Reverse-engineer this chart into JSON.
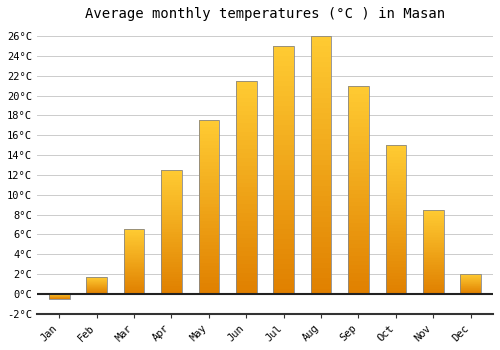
{
  "title": "Average monthly temperatures (°C ) in Masan",
  "months": [
    "Jan",
    "Feb",
    "Mar",
    "Apr",
    "May",
    "Jun",
    "Jul",
    "Aug",
    "Sep",
    "Oct",
    "Nov",
    "Dec"
  ],
  "values": [
    -0.5,
    1.7,
    6.5,
    12.5,
    17.5,
    21.5,
    25.0,
    26.0,
    21.0,
    15.0,
    8.5,
    2.0
  ],
  "ylim": [
    -2,
    27
  ],
  "yticks": [
    -2,
    0,
    2,
    4,
    6,
    8,
    10,
    12,
    14,
    16,
    18,
    20,
    22,
    24,
    26
  ],
  "ytick_labels": [
    "-2°C",
    "0°C",
    "2°C",
    "4°C",
    "6°C",
    "8°C",
    "10°C",
    "12°C",
    "14°C",
    "16°C",
    "18°C",
    "20°C",
    "22°C",
    "24°C",
    "26°C"
  ],
  "bar_color_bright": "#FFCC33",
  "bar_color_dark": "#E08000",
  "bar_edge_color": "#888888",
  "background_color": "#FFFFFF",
  "grid_color": "#CCCCCC",
  "title_fontsize": 10,
  "tick_fontsize": 7.5,
  "font_family": "monospace",
  "bar_width": 0.55
}
